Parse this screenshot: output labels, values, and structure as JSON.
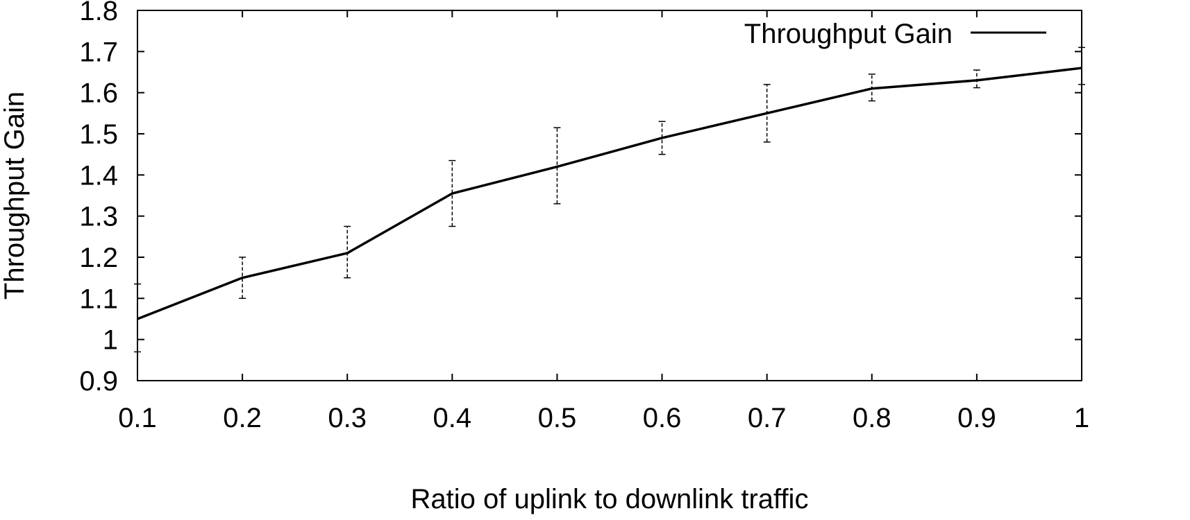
{
  "chart_data": {
    "type": "line",
    "title": "",
    "xlabel": "Ratio of uplink to downlink traffic",
    "ylabel": "Throughput Gain",
    "xlim": [
      0.1,
      1.0
    ],
    "ylim": [
      0.9,
      1.8
    ],
    "xticks": [
      "0.1",
      "0.2",
      "0.3",
      "0.4",
      "0.5",
      "0.6",
      "0.7",
      "0.8",
      "0.9",
      "1"
    ],
    "yticks": [
      "0.9",
      "1",
      "1.1",
      "1.2",
      "1.3",
      "1.4",
      "1.5",
      "1.6",
      "1.7",
      "1.8"
    ],
    "legend_position": "top-right",
    "grid": false,
    "x": [
      0.1,
      0.2,
      0.3,
      0.4,
      0.5,
      0.6,
      0.7,
      0.8,
      0.9,
      1.0
    ],
    "series": [
      {
        "name": "Throughput Gain",
        "color": "#000000",
        "values": [
          1.05,
          1.15,
          1.21,
          1.355,
          1.42,
          1.49,
          1.55,
          1.61,
          1.63,
          1.66
        ],
        "error_low": [
          0.97,
          1.1,
          1.15,
          1.275,
          1.33,
          1.45,
          1.48,
          1.58,
          1.612,
          1.62
        ],
        "error_high": [
          1.135,
          1.2,
          1.275,
          1.435,
          1.515,
          1.53,
          1.62,
          1.645,
          1.655,
          1.71
        ]
      }
    ]
  }
}
